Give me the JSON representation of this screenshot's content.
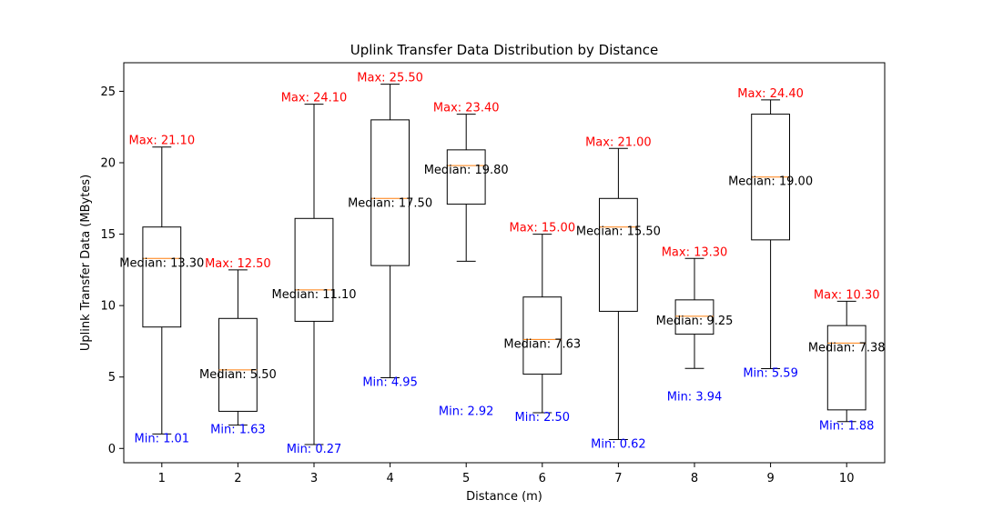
{
  "chart_data": {
    "type": "box",
    "title": "Uplink Transfer Data Distribution by Distance",
    "xlabel": "Distance (m)",
    "ylabel": "Uplink Transfer Data (MBytes)",
    "ylim": [
      -1,
      27
    ],
    "yticks": [
      0,
      5,
      10,
      15,
      20,
      25
    ],
    "grid": false,
    "categories": [
      "1",
      "2",
      "3",
      "4",
      "5",
      "6",
      "7",
      "8",
      "9",
      "10"
    ],
    "boxes": [
      {
        "whisker_low": 1.01,
        "q1": 8.5,
        "median": 13.3,
        "q3": 15.5,
        "whisker_high": 21.1,
        "max_label": "Max: 21.10",
        "median_label": "Median: 13.30",
        "min_label": "Min: 1.01",
        "min_value": 1.01
      },
      {
        "whisker_low": 1.63,
        "q1": 2.6,
        "median": 5.5,
        "q3": 9.1,
        "whisker_high": 12.5,
        "max_label": "Max: 12.50",
        "median_label": "Median: 5.50",
        "min_label": "Min: 1.63",
        "min_value": 1.63
      },
      {
        "whisker_low": 0.27,
        "q1": 8.9,
        "median": 11.1,
        "q3": 16.1,
        "whisker_high": 24.1,
        "max_label": "Max: 24.10",
        "median_label": "Median: 11.10",
        "min_label": "Min: 0.27",
        "min_value": 0.27
      },
      {
        "whisker_low": 4.95,
        "q1": 12.8,
        "median": 17.5,
        "q3": 23.0,
        "whisker_high": 25.5,
        "max_label": "Max: 25.50",
        "median_label": "Median: 17.50",
        "min_label": "Min: 4.95",
        "min_value": 4.95
      },
      {
        "whisker_low": 13.1,
        "q1": 17.1,
        "median": 19.8,
        "q3": 20.9,
        "whisker_high": 23.4,
        "max_label": "Max: 23.40",
        "median_label": "Median: 19.80",
        "min_label": "Min: 2.92",
        "min_value": 2.92
      },
      {
        "whisker_low": 2.5,
        "q1": 5.2,
        "median": 7.63,
        "q3": 10.6,
        "whisker_high": 15.0,
        "max_label": "Max: 15.00",
        "median_label": "Median: 7.63",
        "min_label": "Min: 2.50",
        "min_value": 2.5
      },
      {
        "whisker_low": 0.62,
        "q1": 9.6,
        "median": 15.5,
        "q3": 17.5,
        "whisker_high": 21.0,
        "max_label": "Max: 21.00",
        "median_label": "Median: 15.50",
        "min_label": "Min: 0.62",
        "min_value": 0.62
      },
      {
        "whisker_low": 5.6,
        "q1": 8.0,
        "median": 9.25,
        "q3": 10.4,
        "whisker_high": 13.3,
        "max_label": "Max: 13.30",
        "median_label": "Median: 9.25",
        "min_label": "Min: 3.94",
        "min_value": 3.94
      },
      {
        "whisker_low": 5.59,
        "q1": 14.6,
        "median": 19.0,
        "q3": 23.4,
        "whisker_high": 24.4,
        "max_label": "Max: 24.40",
        "median_label": "Median: 19.00",
        "min_label": "Min: 5.59",
        "min_value": 5.59
      },
      {
        "whisker_low": 1.88,
        "q1": 2.7,
        "median": 7.38,
        "q3": 8.6,
        "whisker_high": 10.3,
        "max_label": "Max: 10.30",
        "median_label": "Median: 7.38",
        "min_label": "Min: 1.88",
        "min_value": 1.88
      }
    ],
    "colors": {
      "box": "#000000",
      "median_line": "#ff7f0e",
      "max_text": "#ff0000",
      "min_text": "#0000ff",
      "median_text": "#000000"
    }
  }
}
